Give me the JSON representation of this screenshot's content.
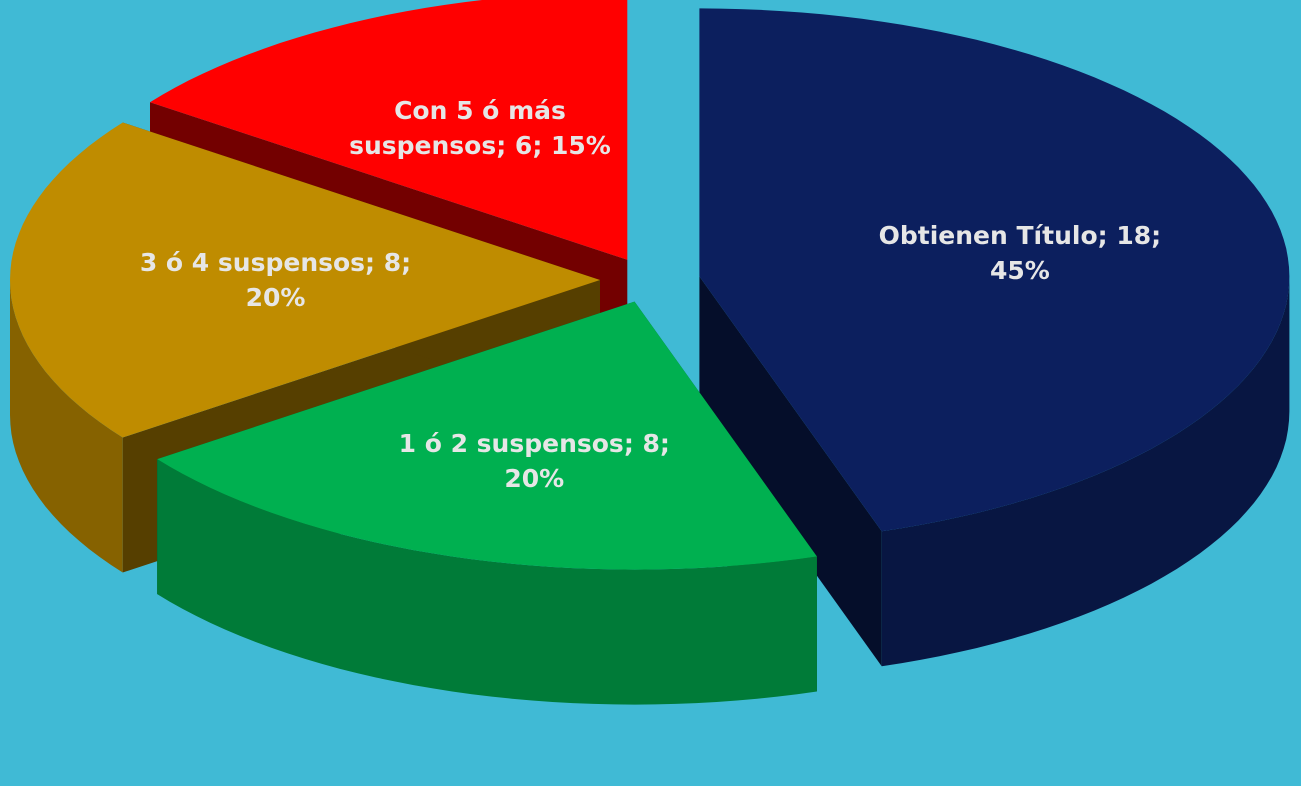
{
  "chart_data": {
    "type": "pie3d",
    "categories": [
      "Obtienen Título",
      "1 ó 2 suspensos",
      "3 ó 4 suspensos",
      "Con 5 ó más suspensos"
    ],
    "values": [
      18,
      8,
      8,
      6
    ],
    "value_labels": [
      "Obtienen Título; 18; 45%",
      "1 ó 2 suspensos; 8; 20%",
      "3 ó 4 suspensos; 8; 20%",
      "Con 5 ó más suspensos; 6; 15%"
    ],
    "colors": [
      "#0c1f5e",
      "#00b050",
      "#bf8c00",
      "#ff0000"
    ]
  }
}
